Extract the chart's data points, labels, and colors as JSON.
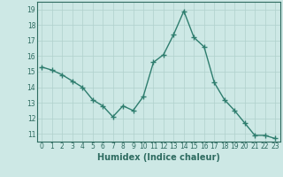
{
  "x": [
    0,
    1,
    2,
    3,
    4,
    5,
    6,
    7,
    8,
    9,
    10,
    11,
    12,
    13,
    14,
    15,
    16,
    17,
    18,
    19,
    20,
    21,
    22,
    23
  ],
  "y": [
    15.3,
    15.1,
    14.8,
    14.4,
    14.0,
    13.2,
    12.8,
    12.1,
    12.8,
    12.5,
    13.4,
    15.6,
    16.1,
    17.4,
    18.9,
    17.2,
    16.6,
    14.3,
    13.2,
    12.5,
    11.7,
    10.9,
    10.9,
    10.7
  ],
  "line_color": "#2e7d6e",
  "marker": "+",
  "markersize": 4,
  "markeredgewidth": 1.0,
  "linewidth": 1.0,
  "bg_color": "#cde8e5",
  "grid_color": "#b0d0cc",
  "xlabel": "Humidex (Indice chaleur)",
  "xlim": [
    -0.5,
    23.5
  ],
  "ylim": [
    10.5,
    19.5
  ],
  "yticks": [
    11,
    12,
    13,
    14,
    15,
    16,
    17,
    18,
    19
  ],
  "xticks": [
    0,
    1,
    2,
    3,
    4,
    5,
    6,
    7,
    8,
    9,
    10,
    11,
    12,
    13,
    14,
    15,
    16,
    17,
    18,
    19,
    20,
    21,
    22,
    23
  ],
  "tick_fontsize": 5.5,
  "xlabel_fontsize": 7.0,
  "tick_color": "#2e6b60"
}
